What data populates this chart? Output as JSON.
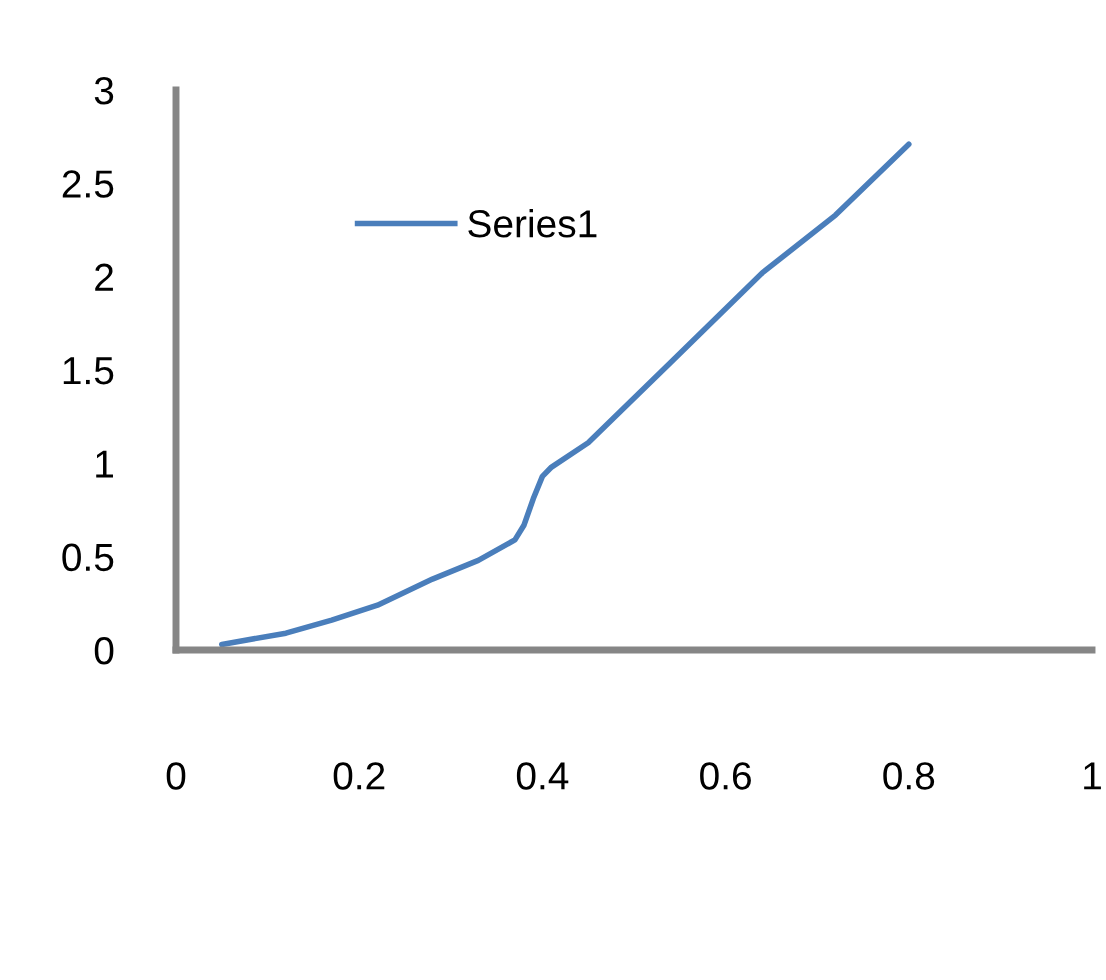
{
  "chart_data": {
    "type": "line",
    "x": [
      0.05,
      0.12,
      0.17,
      0.22,
      0.28,
      0.33,
      0.37,
      0.38,
      0.39,
      0.4,
      0.41,
      0.45,
      0.54,
      0.64,
      0.72,
      0.8
    ],
    "series": [
      {
        "name": "Series1",
        "color": "#4a7ebb",
        "values": [
          0.03,
          0.09,
          0.16,
          0.24,
          0.38,
          0.48,
          0.59,
          0.67,
          0.81,
          0.93,
          0.98,
          1.11,
          1.54,
          2.02,
          2.33,
          2.71
        ]
      }
    ],
    "xlim": [
      0,
      1
    ],
    "xticks": [
      0,
      0.2,
      0.4,
      0.6,
      0.8,
      1
    ],
    "ylim": [
      0,
      3
    ],
    "yticks": [
      0,
      0.5,
      1,
      1.5,
      2,
      2.5,
      3
    ],
    "legend": "top left",
    "grid": false,
    "marker": "none",
    "line_style": "solid"
  }
}
